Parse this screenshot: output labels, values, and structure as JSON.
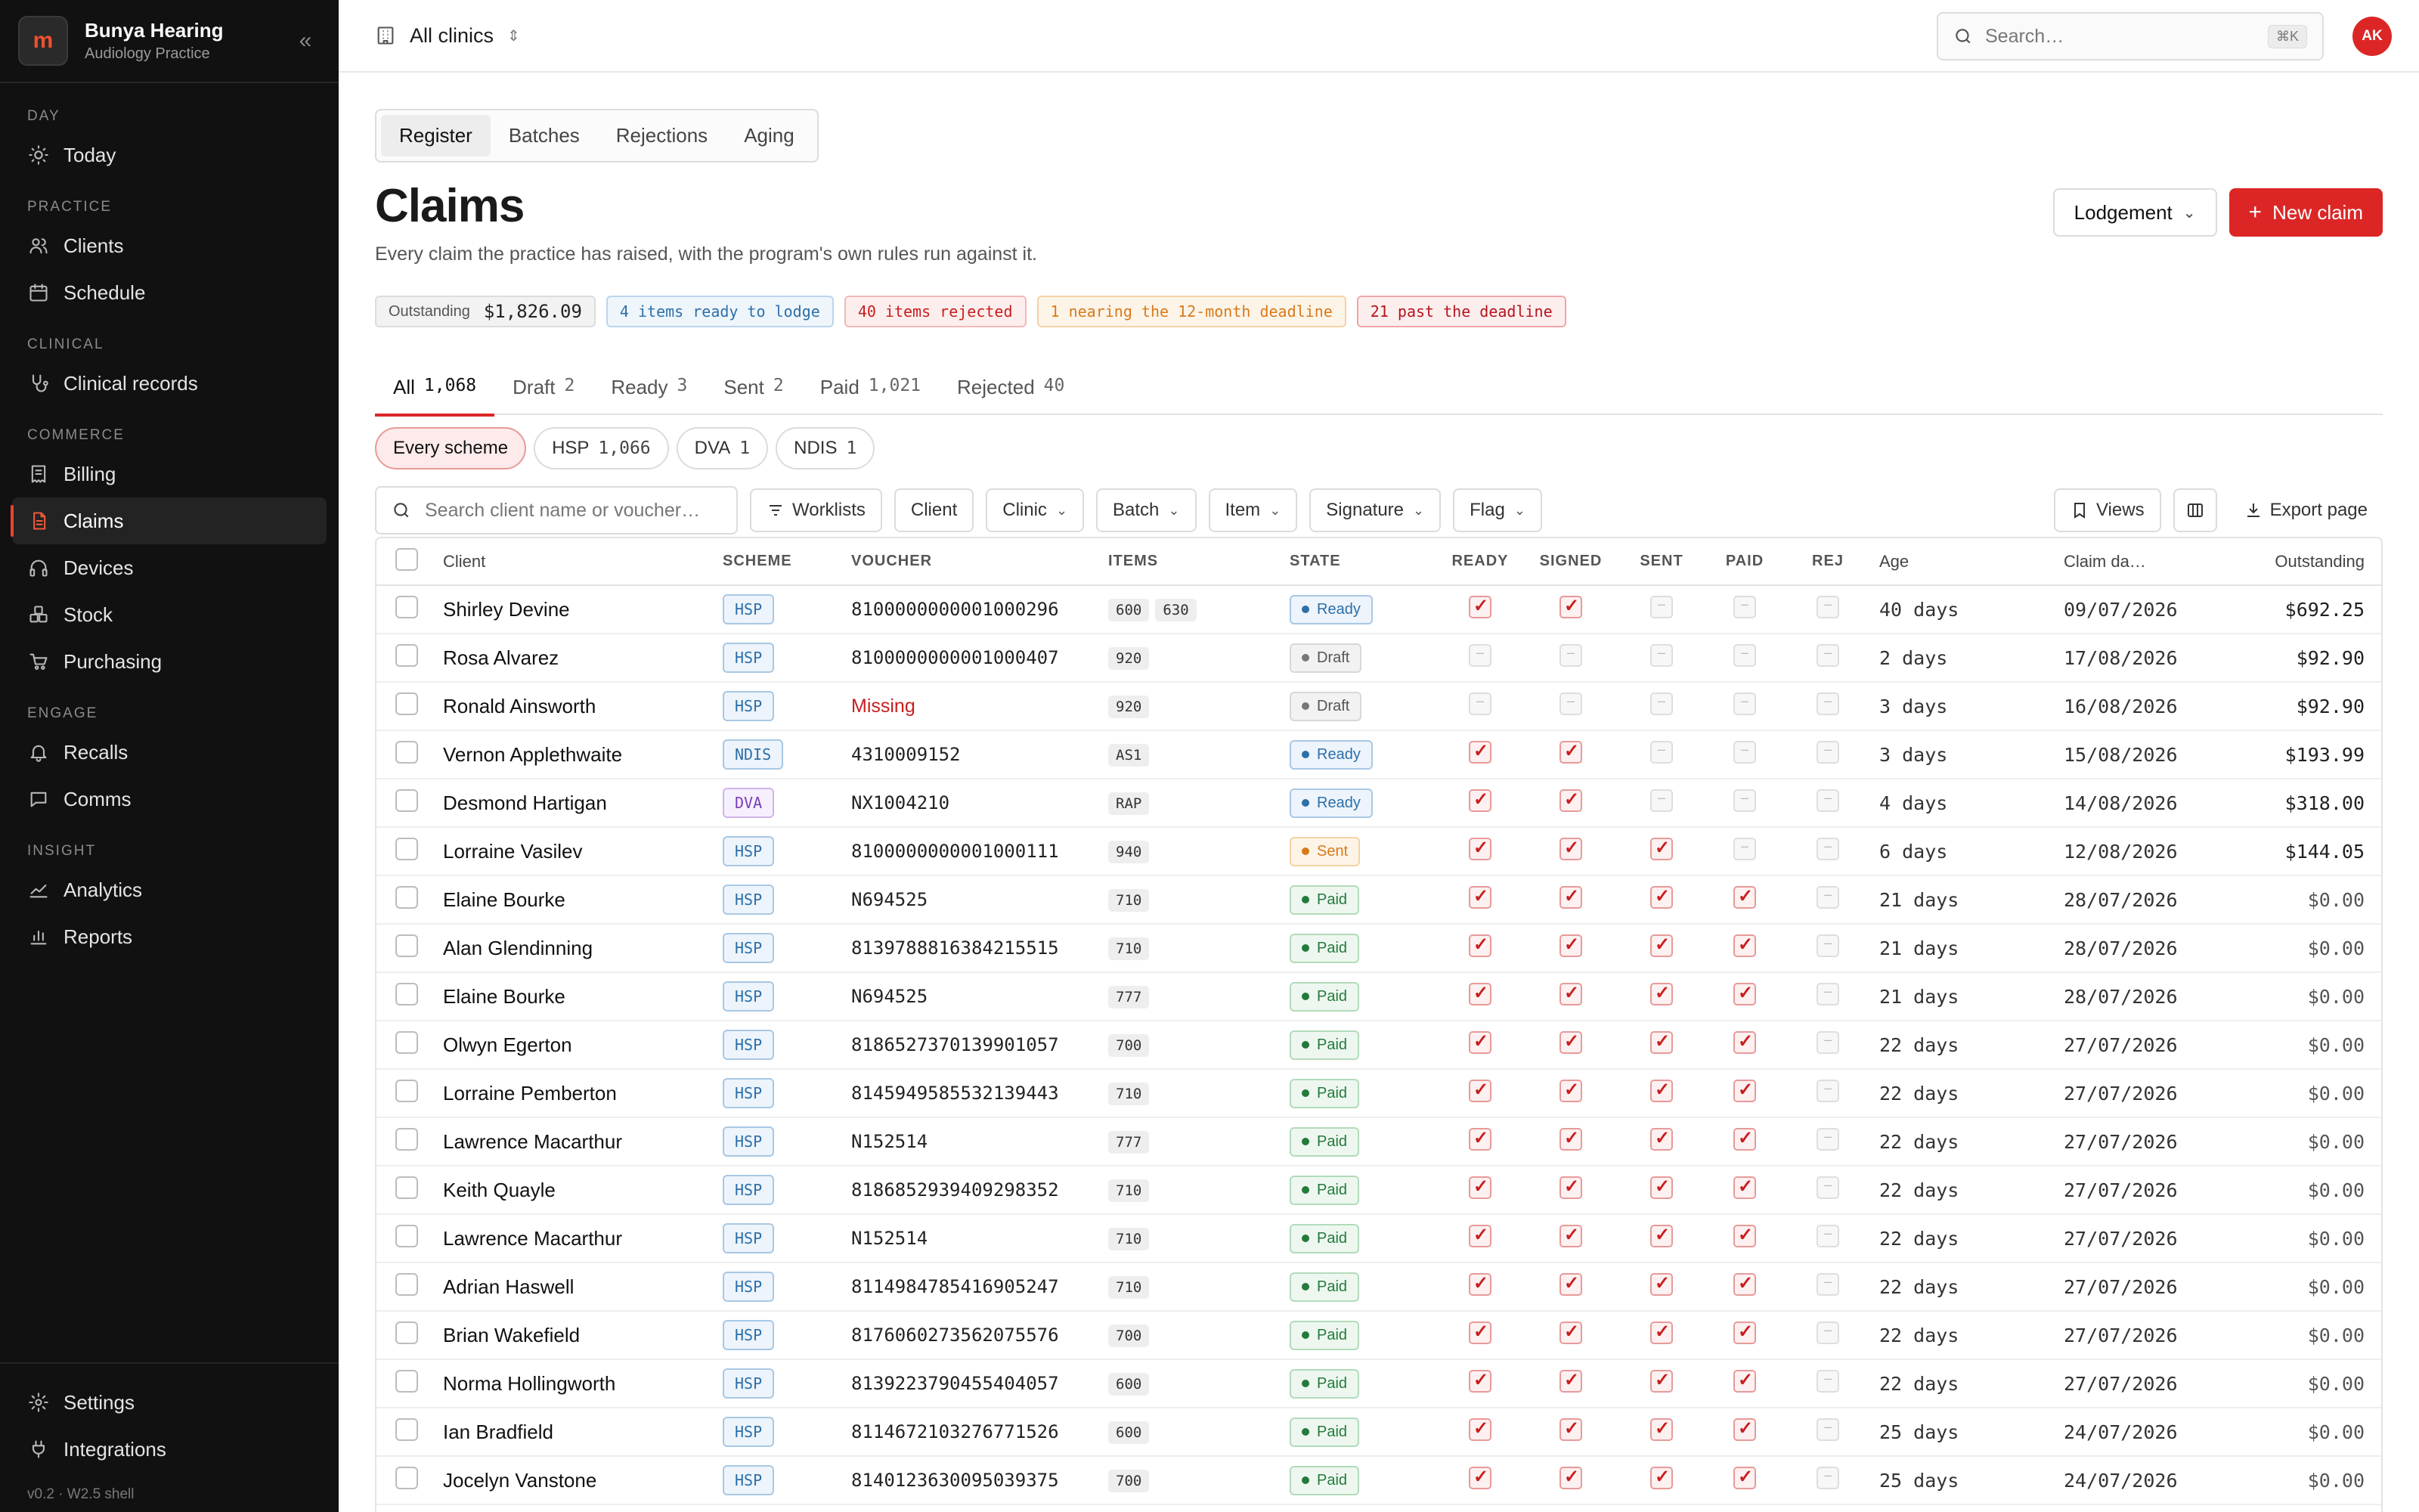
{
  "brand": {
    "name": "Bunya Hearing",
    "subtitle": "Audiology Practice",
    "logo_text": "m"
  },
  "sidebar": {
    "sections": [
      {
        "heading": "DAY",
        "items": [
          {
            "label": "Today",
            "icon": "sun-icon"
          }
        ]
      },
      {
        "heading": "PRACTICE",
        "items": [
          {
            "label": "Clients",
            "icon": "users-icon"
          },
          {
            "label": "Schedule",
            "icon": "calendar-icon"
          }
        ]
      },
      {
        "heading": "CLINICAL",
        "items": [
          {
            "label": "Clinical records",
            "icon": "stethoscope-icon"
          }
        ]
      },
      {
        "heading": "COMMERCE",
        "items": [
          {
            "label": "Billing",
            "icon": "receipt-icon"
          },
          {
            "label": "Claims",
            "icon": "claims-icon",
            "active": true
          },
          {
            "label": "Devices",
            "icon": "headphones-icon"
          },
          {
            "label": "Stock",
            "icon": "boxes-icon"
          },
          {
            "label": "Purchasing",
            "icon": "cart-icon"
          }
        ]
      },
      {
        "heading": "ENGAGE",
        "items": [
          {
            "label": "Recalls",
            "icon": "bell-icon"
          },
          {
            "label": "Comms",
            "icon": "message-icon"
          }
        ]
      },
      {
        "heading": "INSIGHT",
        "items": [
          {
            "label": "Analytics",
            "icon": "line-chart-icon"
          },
          {
            "label": "Reports",
            "icon": "bar-chart-icon"
          }
        ]
      }
    ],
    "bottom": [
      {
        "label": "Settings",
        "icon": "gear-icon"
      },
      {
        "label": "Integrations",
        "icon": "plug-icon"
      }
    ],
    "version": "v0.2 · W2.5 shell"
  },
  "topbar": {
    "clinic": "All clinics",
    "search_placeholder": "Search…",
    "shortcut": "⌘K",
    "avatar": "AK"
  },
  "subtabs": [
    {
      "label": "Register",
      "active": true
    },
    {
      "label": "Batches"
    },
    {
      "label": "Rejections"
    },
    {
      "label": "Aging"
    }
  ],
  "page": {
    "title": "Claims",
    "description": "Every claim the practice has raised, with the program's own rules run against it.",
    "lodgement_label": "Lodgement",
    "new_claim_label": "New claim"
  },
  "summary": {
    "outstanding_label": "Outstanding",
    "outstanding_value": "$1,826.09",
    "ready": "4 items ready to lodge",
    "rejected": "40 items rejected",
    "nearing": "1 nearing the 12-month deadline",
    "past": "21 past the deadline"
  },
  "state_tabs": [
    {
      "label": "All",
      "count": "1,068",
      "active": true
    },
    {
      "label": "Draft",
      "count": "2"
    },
    {
      "label": "Ready",
      "count": "3"
    },
    {
      "label": "Sent",
      "count": "2"
    },
    {
      "label": "Paid",
      "count": "1,021"
    },
    {
      "label": "Rejected",
      "count": "40"
    }
  ],
  "scheme_pills": [
    {
      "label": "Every scheme",
      "count": "",
      "active": true
    },
    {
      "label": "HSP",
      "count": "1,066"
    },
    {
      "label": "DVA",
      "count": "1"
    },
    {
      "label": "NDIS",
      "count": "1"
    }
  ],
  "filters": {
    "search_placeholder": "Search client name or voucher…",
    "worklists": "Worklists",
    "client": "Client",
    "clinic": "Clinic",
    "batch": "Batch",
    "item": "Item",
    "signature": "Signature",
    "flag": "Flag",
    "views": "Views",
    "export": "Export page"
  },
  "table": {
    "columns": [
      "Client",
      "SCHEME",
      "VOUCHER",
      "ITEMS",
      "STATE",
      "READY",
      "SIGNED",
      "SENT",
      "PAID",
      "REJ",
      "Age",
      "Claim da…",
      "Outstanding"
    ],
    "rows": [
      {
        "client": "Shirley Devine",
        "scheme": "HSP",
        "voucher": "8100000000001000296",
        "items": [
          "600",
          "630"
        ],
        "state": "Ready",
        "flags": [
          1,
          1,
          0,
          0,
          0
        ],
        "age": "40 days",
        "date": "09/07/2026",
        "outstanding": "$692.25"
      },
      {
        "client": "Rosa Alvarez",
        "scheme": "HSP",
        "voucher": "8100000000001000407",
        "items": [
          "920"
        ],
        "state": "Draft",
        "flags": [
          0,
          0,
          0,
          0,
          0
        ],
        "age": "2 days",
        "date": "17/08/2026",
        "outstanding": "$92.90"
      },
      {
        "client": "Ronald Ainsworth",
        "scheme": "HSP",
        "voucher": "Missing",
        "items": [
          "920"
        ],
        "state": "Draft",
        "flags": [
          0,
          0,
          0,
          0,
          0
        ],
        "age": "3 days",
        "date": "16/08/2026",
        "outstanding": "$92.90"
      },
      {
        "client": "Vernon Applethwaite",
        "scheme": "NDIS",
        "voucher": "4310009152",
        "items": [
          "AS1"
        ],
        "state": "Ready",
        "flags": [
          1,
          1,
          0,
          0,
          0
        ],
        "age": "3 days",
        "date": "15/08/2026",
        "outstanding": "$193.99"
      },
      {
        "client": "Desmond Hartigan",
        "scheme": "DVA",
        "voucher": "NX1004210",
        "items": [
          "RAP"
        ],
        "state": "Ready",
        "flags": [
          1,
          1,
          0,
          0,
          0
        ],
        "age": "4 days",
        "date": "14/08/2026",
        "outstanding": "$318.00"
      },
      {
        "client": "Lorraine Vasilev",
        "scheme": "HSP",
        "voucher": "8100000000001000111",
        "items": [
          "940"
        ],
        "state": "Sent",
        "flags": [
          1,
          1,
          1,
          0,
          0
        ],
        "age": "6 days",
        "date": "12/08/2026",
        "outstanding": "$144.05"
      },
      {
        "client": "Elaine Bourke",
        "scheme": "HSP",
        "voucher": "N694525",
        "items": [
          "710"
        ],
        "state": "Paid",
        "flags": [
          1,
          1,
          1,
          1,
          0
        ],
        "age": "21 days",
        "date": "28/07/2026",
        "outstanding": "$0.00"
      },
      {
        "client": "Alan Glendinning",
        "scheme": "HSP",
        "voucher": "8139788816384215515",
        "items": [
          "710"
        ],
        "state": "Paid",
        "flags": [
          1,
          1,
          1,
          1,
          0
        ],
        "age": "21 days",
        "date": "28/07/2026",
        "outstanding": "$0.00"
      },
      {
        "client": "Elaine Bourke",
        "scheme": "HSP",
        "voucher": "N694525",
        "items": [
          "777"
        ],
        "state": "Paid",
        "flags": [
          1,
          1,
          1,
          1,
          0
        ],
        "age": "21 days",
        "date": "28/07/2026",
        "outstanding": "$0.00"
      },
      {
        "client": "Olwyn Egerton",
        "scheme": "HSP",
        "voucher": "8186527370139901057",
        "items": [
          "700"
        ],
        "state": "Paid",
        "flags": [
          1,
          1,
          1,
          1,
          0
        ],
        "age": "22 days",
        "date": "27/07/2026",
        "outstanding": "$0.00"
      },
      {
        "client": "Lorraine Pemberton",
        "scheme": "HSP",
        "voucher": "8145949585532139443",
        "items": [
          "710"
        ],
        "state": "Paid",
        "flags": [
          1,
          1,
          1,
          1,
          0
        ],
        "age": "22 days",
        "date": "27/07/2026",
        "outstanding": "$0.00"
      },
      {
        "client": "Lawrence Macarthur",
        "scheme": "HSP",
        "voucher": "N152514",
        "items": [
          "777"
        ],
        "state": "Paid",
        "flags": [
          1,
          1,
          1,
          1,
          0
        ],
        "age": "22 days",
        "date": "27/07/2026",
        "outstanding": "$0.00"
      },
      {
        "client": "Keith Quayle",
        "scheme": "HSP",
        "voucher": "8186852939409298352",
        "items": [
          "710"
        ],
        "state": "Paid",
        "flags": [
          1,
          1,
          1,
          1,
          0
        ],
        "age": "22 days",
        "date": "27/07/2026",
        "outstanding": "$0.00"
      },
      {
        "client": "Lawrence Macarthur",
        "scheme": "HSP",
        "voucher": "N152514",
        "items": [
          "710"
        ],
        "state": "Paid",
        "flags": [
          1,
          1,
          1,
          1,
          0
        ],
        "age": "22 days",
        "date": "27/07/2026",
        "outstanding": "$0.00"
      },
      {
        "client": "Adrian Haswell",
        "scheme": "HSP",
        "voucher": "8114984785416905247",
        "items": [
          "710"
        ],
        "state": "Paid",
        "flags": [
          1,
          1,
          1,
          1,
          0
        ],
        "age": "22 days",
        "date": "27/07/2026",
        "outstanding": "$0.00"
      },
      {
        "client": "Brian Wakefield",
        "scheme": "HSP",
        "voucher": "8176060273562075576",
        "items": [
          "700"
        ],
        "state": "Paid",
        "flags": [
          1,
          1,
          1,
          1,
          0
        ],
        "age": "22 days",
        "date": "27/07/2026",
        "outstanding": "$0.00"
      },
      {
        "client": "Norma Hollingworth",
        "scheme": "HSP",
        "voucher": "8139223790455404057",
        "items": [
          "600"
        ],
        "state": "Paid",
        "flags": [
          1,
          1,
          1,
          1,
          0
        ],
        "age": "22 days",
        "date": "27/07/2026",
        "outstanding": "$0.00"
      },
      {
        "client": "Ian Bradfield",
        "scheme": "HSP",
        "voucher": "8114672103276771526",
        "items": [
          "600"
        ],
        "state": "Paid",
        "flags": [
          1,
          1,
          1,
          1,
          0
        ],
        "age": "25 days",
        "date": "24/07/2026",
        "outstanding": "$0.00"
      },
      {
        "client": "Jocelyn Vanstone",
        "scheme": "HSP",
        "voucher": "8140123630095039375",
        "items": [
          "700"
        ],
        "state": "Paid",
        "flags": [
          1,
          1,
          1,
          1,
          0
        ],
        "age": "25 days",
        "date": "24/07/2026",
        "outstanding": "$0.00"
      }
    ]
  },
  "colors": {
    "accent": "#dc2626",
    "sidebar_bg": "#111111",
    "ready": "#2d6fa8",
    "paid": "#237a3b",
    "sent": "#d9791a"
  }
}
